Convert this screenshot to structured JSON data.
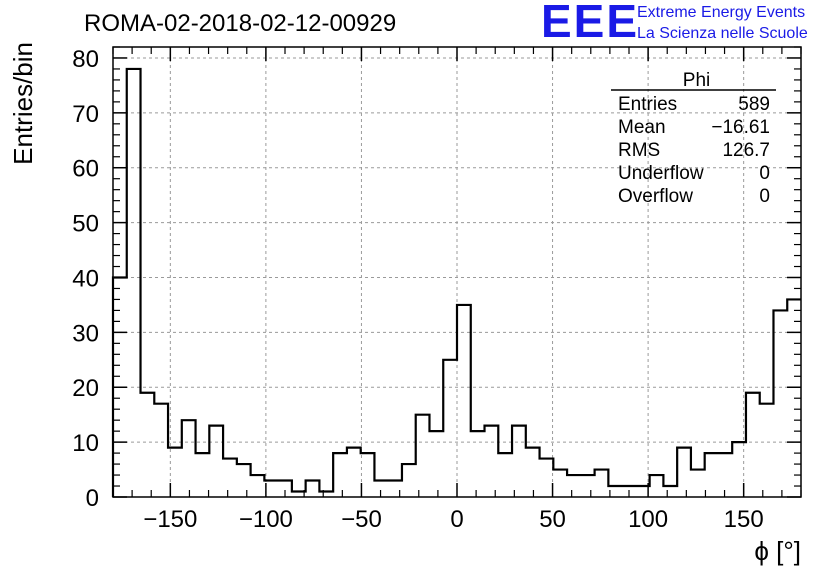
{
  "header": {
    "run_title": "ROMA-02-2018-02-12-00929",
    "logo_text": "EEE",
    "logo_line1": "Extreme Energy Events",
    "logo_line2": "La Scienza nelle Scuole"
  },
  "stats": {
    "title": "Phi",
    "rows": [
      {
        "label": "Entries",
        "value": "589"
      },
      {
        "label": "Mean",
        "value": "−16.61"
      },
      {
        "label": "RMS",
        "value": "126.7"
      },
      {
        "label": "Underflow",
        "value": "0"
      },
      {
        "label": "Overflow",
        "value": "0"
      }
    ]
  },
  "chart_data": {
    "type": "histogram",
    "title": "ROMA-02-2018-02-12-00929",
    "xlabel": "ϕ [°]",
    "ylabel": "Entries/bin",
    "xlim": [
      -180,
      180
    ],
    "ylim": [
      0,
      82
    ],
    "xticks": [
      -150,
      -100,
      -50,
      0,
      50,
      100,
      150
    ],
    "xtick_labels": [
      "−150",
      "−100",
      "−50",
      "0",
      "50",
      "100",
      "150"
    ],
    "yticks": [
      0,
      10,
      20,
      30,
      40,
      50,
      60,
      70,
      80
    ],
    "ytick_labels": [
      "0",
      "10",
      "20",
      "30",
      "40",
      "50",
      "60",
      "70",
      "80"
    ],
    "grid": true,
    "bin_width": 7.2,
    "bin_edges_start": -180,
    "values": [
      40,
      78,
      19,
      17,
      9,
      14,
      8,
      13,
      7,
      6,
      4,
      3,
      3,
      1,
      3,
      1,
      8,
      9,
      8,
      3,
      3,
      6,
      15,
      12,
      25,
      35,
      12,
      13,
      8,
      13,
      9,
      7,
      5,
      4,
      4,
      5,
      2,
      2,
      2,
      4,
      2,
      9,
      5,
      8,
      8,
      10,
      19,
      17,
      34,
      36
    ]
  }
}
